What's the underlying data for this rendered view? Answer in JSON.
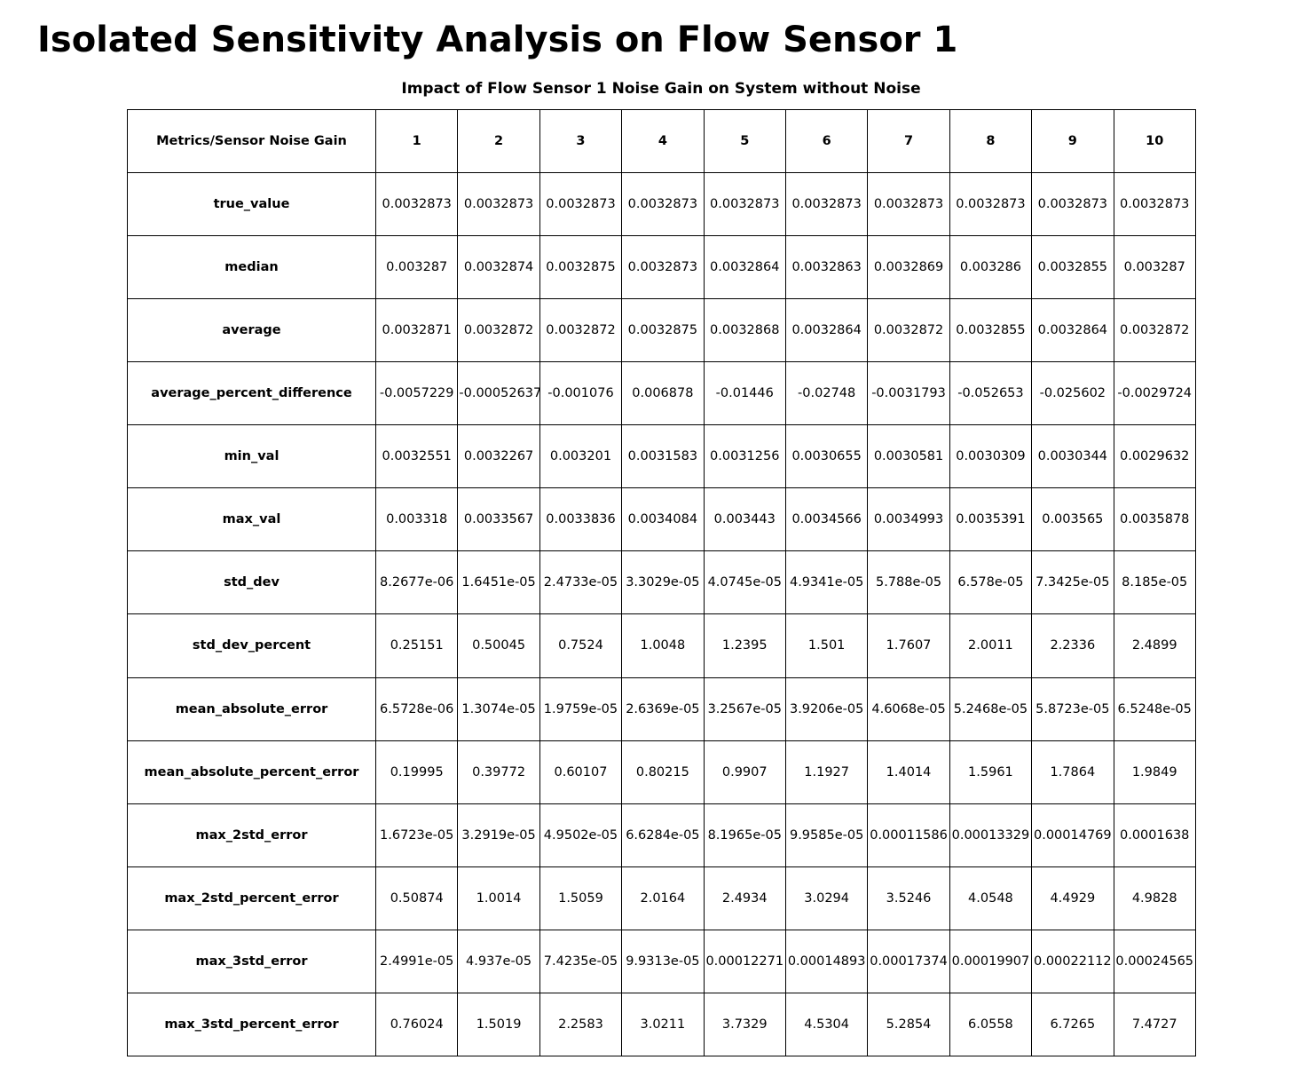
{
  "page": {
    "title": "Isolated Sensitivity Analysis on Flow Sensor 1",
    "subtitle": "Impact of Flow Sensor 1 Noise Gain on System without Noise"
  },
  "chart_data": {
    "type": "table",
    "title": "Impact of Flow Sensor 1 Noise Gain on System without Noise",
    "corner_header": "Metrics/Sensor Noise Gain",
    "column_headers": [
      "1",
      "2",
      "3",
      "4",
      "5",
      "6",
      "7",
      "8",
      "9",
      "10"
    ],
    "rows": [
      {
        "label": "true_value",
        "values": [
          "0.0032873",
          "0.0032873",
          "0.0032873",
          "0.0032873",
          "0.0032873",
          "0.0032873",
          "0.0032873",
          "0.0032873",
          "0.0032873",
          "0.0032873"
        ]
      },
      {
        "label": "median",
        "values": [
          "0.003287",
          "0.0032874",
          "0.0032875",
          "0.0032873",
          "0.0032864",
          "0.0032863",
          "0.0032869",
          "0.003286",
          "0.0032855",
          "0.003287"
        ]
      },
      {
        "label": "average",
        "values": [
          "0.0032871",
          "0.0032872",
          "0.0032872",
          "0.0032875",
          "0.0032868",
          "0.0032864",
          "0.0032872",
          "0.0032855",
          "0.0032864",
          "0.0032872"
        ]
      },
      {
        "label": "average_percent_difference",
        "values": [
          "-0.0057229",
          "-0.00052637",
          "-0.001076",
          "0.006878",
          "-0.01446",
          "-0.02748",
          "-0.0031793",
          "-0.052653",
          "-0.025602",
          "-0.0029724"
        ]
      },
      {
        "label": "min_val",
        "values": [
          "0.0032551",
          "0.0032267",
          "0.003201",
          "0.0031583",
          "0.0031256",
          "0.0030655",
          "0.0030581",
          "0.0030309",
          "0.0030344",
          "0.0029632"
        ]
      },
      {
        "label": "max_val",
        "values": [
          "0.003318",
          "0.0033567",
          "0.0033836",
          "0.0034084",
          "0.003443",
          "0.0034566",
          "0.0034993",
          "0.0035391",
          "0.003565",
          "0.0035878"
        ]
      },
      {
        "label": "std_dev",
        "values": [
          "8.2677e-06",
          "1.6451e-05",
          "2.4733e-05",
          "3.3029e-05",
          "4.0745e-05",
          "4.9341e-05",
          "5.788e-05",
          "6.578e-05",
          "7.3425e-05",
          "8.185e-05"
        ]
      },
      {
        "label": "std_dev_percent",
        "values": [
          "0.25151",
          "0.50045",
          "0.7524",
          "1.0048",
          "1.2395",
          "1.501",
          "1.7607",
          "2.0011",
          "2.2336",
          "2.4899"
        ]
      },
      {
        "label": "mean_absolute_error",
        "values": [
          "6.5728e-06",
          "1.3074e-05",
          "1.9759e-05",
          "2.6369e-05",
          "3.2567e-05",
          "3.9206e-05",
          "4.6068e-05",
          "5.2468e-05",
          "5.8723e-05",
          "6.5248e-05"
        ]
      },
      {
        "label": "mean_absolute_percent_error",
        "values": [
          "0.19995",
          "0.39772",
          "0.60107",
          "0.80215",
          "0.9907",
          "1.1927",
          "1.4014",
          "1.5961",
          "1.7864",
          "1.9849"
        ]
      },
      {
        "label": "max_2std_error",
        "values": [
          "1.6723e-05",
          "3.2919e-05",
          "4.9502e-05",
          "6.6284e-05",
          "8.1965e-05",
          "9.9585e-05",
          "0.00011586",
          "0.00013329",
          "0.00014769",
          "0.0001638"
        ]
      },
      {
        "label": "max_2std_percent_error",
        "values": [
          "0.50874",
          "1.0014",
          "1.5059",
          "2.0164",
          "2.4934",
          "3.0294",
          "3.5246",
          "4.0548",
          "4.4929",
          "4.9828"
        ]
      },
      {
        "label": "max_3std_error",
        "values": [
          "2.4991e-05",
          "4.937e-05",
          "7.4235e-05",
          "9.9313e-05",
          "0.00012271",
          "0.00014893",
          "0.00017374",
          "0.00019907",
          "0.00022112",
          "0.00024565"
        ]
      },
      {
        "label": "max_3std_percent_error",
        "values": [
          "0.76024",
          "1.5019",
          "2.2583",
          "3.0211",
          "3.7329",
          "4.5304",
          "5.2854",
          "6.0558",
          "6.7265",
          "7.4727"
        ]
      }
    ]
  }
}
